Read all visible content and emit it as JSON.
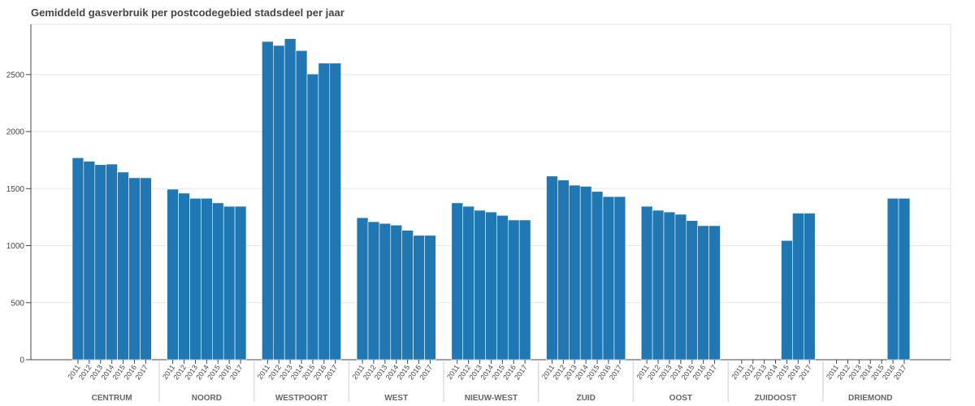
{
  "chart_data": {
    "type": "bar",
    "title": "Gemiddeld gasverbruik per postcodegebied stadsdeel per jaar",
    "xlabel": "",
    "ylabel": "",
    "ylim": [
      0,
      2940
    ],
    "yticks": [
      0,
      500,
      1000,
      1500,
      2000,
      2500
    ],
    "grid": true,
    "legend": "none",
    "bar_color": "#1f77b4",
    "groups": [
      {
        "name": "CENTRUM",
        "years": [
          "2011",
          "2012",
          "2013",
          "2014",
          "2015",
          "2016",
          "2017"
        ],
        "values": [
          1770,
          1740,
          1710,
          1715,
          1645,
          1595,
          1595
        ]
      },
      {
        "name": "NOORD",
        "years": [
          "2011",
          "2012",
          "2013",
          "2014",
          "2015",
          "2016",
          "2017"
        ],
        "values": [
          1495,
          1460,
          1415,
          1415,
          1375,
          1345,
          1345
        ]
      },
      {
        "name": "WESTPOORT",
        "years": [
          "2011",
          "2012",
          "2013",
          "2014",
          "2015",
          "2016",
          "2017"
        ],
        "values": [
          2790,
          2755,
          2815,
          2710,
          2505,
          2600,
          2600
        ]
      },
      {
        "name": "WEST",
        "years": [
          "2011",
          "2012",
          "2013",
          "2014",
          "2015",
          "2016",
          "2017"
        ],
        "values": [
          1245,
          1210,
          1195,
          1180,
          1135,
          1090,
          1090
        ]
      },
      {
        "name": "NIEUW-WEST",
        "years": [
          "2011",
          "2012",
          "2013",
          "2014",
          "2015",
          "2016",
          "2017"
        ],
        "values": [
          1375,
          1345,
          1310,
          1295,
          1265,
          1225,
          1225
        ]
      },
      {
        "name": "ZUID",
        "years": [
          "2011",
          "2012",
          "2013",
          "2014",
          "2015",
          "2016",
          "2017"
        ],
        "values": [
          1610,
          1575,
          1530,
          1520,
          1475,
          1430,
          1430
        ]
      },
      {
        "name": "OOST",
        "years": [
          "2011",
          "2012",
          "2013",
          "2014",
          "2015",
          "2016",
          "2017"
        ],
        "values": [
          1345,
          1310,
          1295,
          1275,
          1220,
          1175,
          1175
        ]
      },
      {
        "name": "ZUIDOOST",
        "years": [
          "2011",
          "2012",
          "2013",
          "2014",
          "2015",
          "2016",
          "2017"
        ],
        "values": [
          0,
          0,
          0,
          0,
          1045,
          1285,
          1285
        ]
      },
      {
        "name": "DRIEMOND",
        "years": [
          "2011",
          "2012",
          "2013",
          "2014",
          "2015",
          "2016",
          "2017"
        ],
        "values": [
          0,
          0,
          0,
          0,
          0,
          1415,
          1415
        ]
      }
    ]
  }
}
